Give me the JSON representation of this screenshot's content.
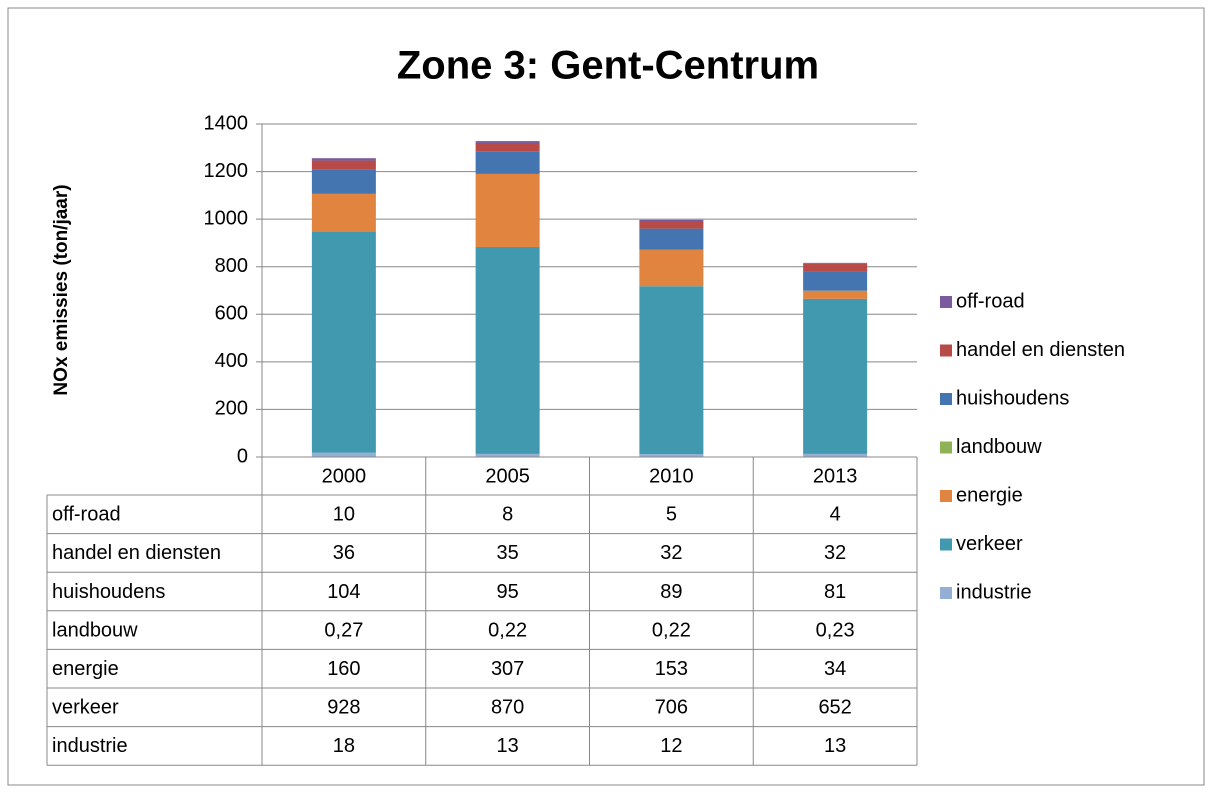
{
  "chart_data": {
    "type": "stacked_bar",
    "title": "Zone 3: Gent-Centrum",
    "y_label": "NOx emissies (ton/jaar)",
    "categories": [
      "2000",
      "2005",
      "2010",
      "2013"
    ],
    "series": [
      {
        "name": "industrie",
        "color": "#95aed3",
        "values": [
          18,
          13,
          12,
          13
        ]
      },
      {
        "name": "verkeer",
        "color": "#4199b0",
        "values": [
          928,
          870,
          706,
          652
        ]
      },
      {
        "name": "energie",
        "color": "#e0843f",
        "values": [
          160,
          307,
          153,
          34
        ]
      },
      {
        "name": "landbouw",
        "color": "#8db355",
        "values": [
          0.27,
          0.22,
          0.22,
          0.23
        ],
        "value_labels": [
          "0,27",
          "0,22",
          "0,22",
          "0,23"
        ]
      },
      {
        "name": "huishoudens",
        "color": "#4475b0",
        "values": [
          104,
          95,
          89,
          81
        ]
      },
      {
        "name": "handel en diensten",
        "color": "#b84a47",
        "values": [
          36,
          35,
          32,
          32
        ]
      },
      {
        "name": "off-road",
        "color": "#7a5c9e",
        "values": [
          10,
          8,
          5,
          4
        ]
      }
    ],
    "ylim": [
      0,
      1400
    ],
    "yticks": [
      0,
      200,
      400,
      600,
      800,
      1000,
      1200,
      1400
    ],
    "grid": true,
    "legend": "right",
    "data_table": true
  }
}
